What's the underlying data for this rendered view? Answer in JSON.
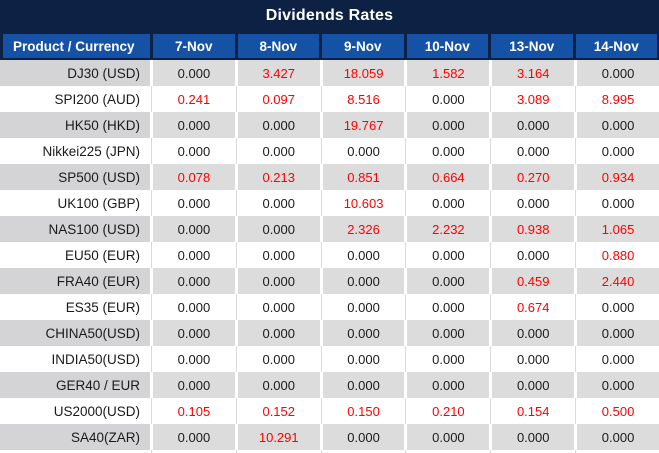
{
  "title": "Dividends Rates",
  "colors": {
    "navy": "#0d2145",
    "blue": "#1552a5",
    "grayData": "#dcdcdc",
    "grayProduct": "#d4d4d6",
    "sepGray": "#d9d9d9",
    "red": "#ff0000",
    "text": "#1a1a1a"
  },
  "table": {
    "product_header": "Product / Currency",
    "date_columns": [
      "7-Nov",
      "8-Nov",
      "9-Nov",
      "10-Nov",
      "13-Nov",
      "14-Nov"
    ],
    "rows": [
      {
        "product": "DJ30 (USD)",
        "values": [
          "0.000",
          "3.427",
          "18.059",
          "1.582",
          "3.164",
          "0.000"
        ],
        "red": [
          false,
          true,
          true,
          true,
          true,
          false
        ]
      },
      {
        "product": "SPI200 (AUD)",
        "values": [
          "0.241",
          "0.097",
          "8.516",
          "0.000",
          "3.089",
          "8.995"
        ],
        "red": [
          true,
          true,
          true,
          false,
          true,
          true
        ]
      },
      {
        "product": "HK50 (HKD)",
        "values": [
          "0.000",
          "0.000",
          "19.767",
          "0.000",
          "0.000",
          "0.000"
        ],
        "red": [
          false,
          false,
          true,
          false,
          false,
          false
        ]
      },
      {
        "product": "Nikkei225 (JPN)",
        "values": [
          "0.000",
          "0.000",
          "0.000",
          "0.000",
          "0.000",
          "0.000"
        ],
        "red": [
          false,
          false,
          false,
          false,
          false,
          false
        ]
      },
      {
        "product": "SP500 (USD)",
        "values": [
          "0.078",
          "0.213",
          "0.851",
          "0.664",
          "0.270",
          "0.934"
        ],
        "red": [
          true,
          true,
          true,
          true,
          true,
          true
        ]
      },
      {
        "product": "UK100 (GBP)",
        "values": [
          "0.000",
          "0.000",
          "10.603",
          "0.000",
          "0.000",
          "0.000"
        ],
        "red": [
          false,
          false,
          true,
          false,
          false,
          false
        ]
      },
      {
        "product": "NAS100 (USD)",
        "values": [
          "0.000",
          "0.000",
          "2.326",
          "2.232",
          "0.938",
          "1.065"
        ],
        "red": [
          false,
          false,
          true,
          true,
          true,
          true
        ]
      },
      {
        "product": "EU50 (EUR)",
        "values": [
          "0.000",
          "0.000",
          "0.000",
          "0.000",
          "0.000",
          "0.880"
        ],
        "red": [
          false,
          false,
          false,
          false,
          false,
          true
        ]
      },
      {
        "product": "FRA40 (EUR)",
        "values": [
          "0.000",
          "0.000",
          "0.000",
          "0.000",
          "0.459",
          "2.440"
        ],
        "red": [
          false,
          false,
          false,
          false,
          true,
          true
        ]
      },
      {
        "product": "ES35 (EUR)",
        "values": [
          "0.000",
          "0.000",
          "0.000",
          "0.000",
          "0.674",
          "0.000"
        ],
        "red": [
          false,
          false,
          false,
          false,
          true,
          false
        ]
      },
      {
        "product": "CHINA50(USD)",
        "values": [
          "0.000",
          "0.000",
          "0.000",
          "0.000",
          "0.000",
          "0.000"
        ],
        "red": [
          false,
          false,
          false,
          false,
          false,
          false
        ]
      },
      {
        "product": "INDIA50(USD)",
        "values": [
          "0.000",
          "0.000",
          "0.000",
          "0.000",
          "0.000",
          "0.000"
        ],
        "red": [
          false,
          false,
          false,
          false,
          false,
          false
        ]
      },
      {
        "product": "GER40 / EUR",
        "values": [
          "0.000",
          "0.000",
          "0.000",
          "0.000",
          "0.000",
          "0.000"
        ],
        "red": [
          false,
          false,
          false,
          false,
          false,
          false
        ]
      },
      {
        "product": "US2000(USD)",
        "values": [
          "0.105",
          "0.152",
          "0.150",
          "0.210",
          "0.154",
          "0.500"
        ],
        "red": [
          true,
          true,
          true,
          true,
          true,
          true
        ]
      },
      {
        "product": "SA40(ZAR)",
        "values": [
          "0.000",
          "10.291",
          "0.000",
          "0.000",
          "0.000",
          "0.000"
        ],
        "red": [
          false,
          true,
          false,
          false,
          false,
          false
        ]
      }
    ]
  }
}
